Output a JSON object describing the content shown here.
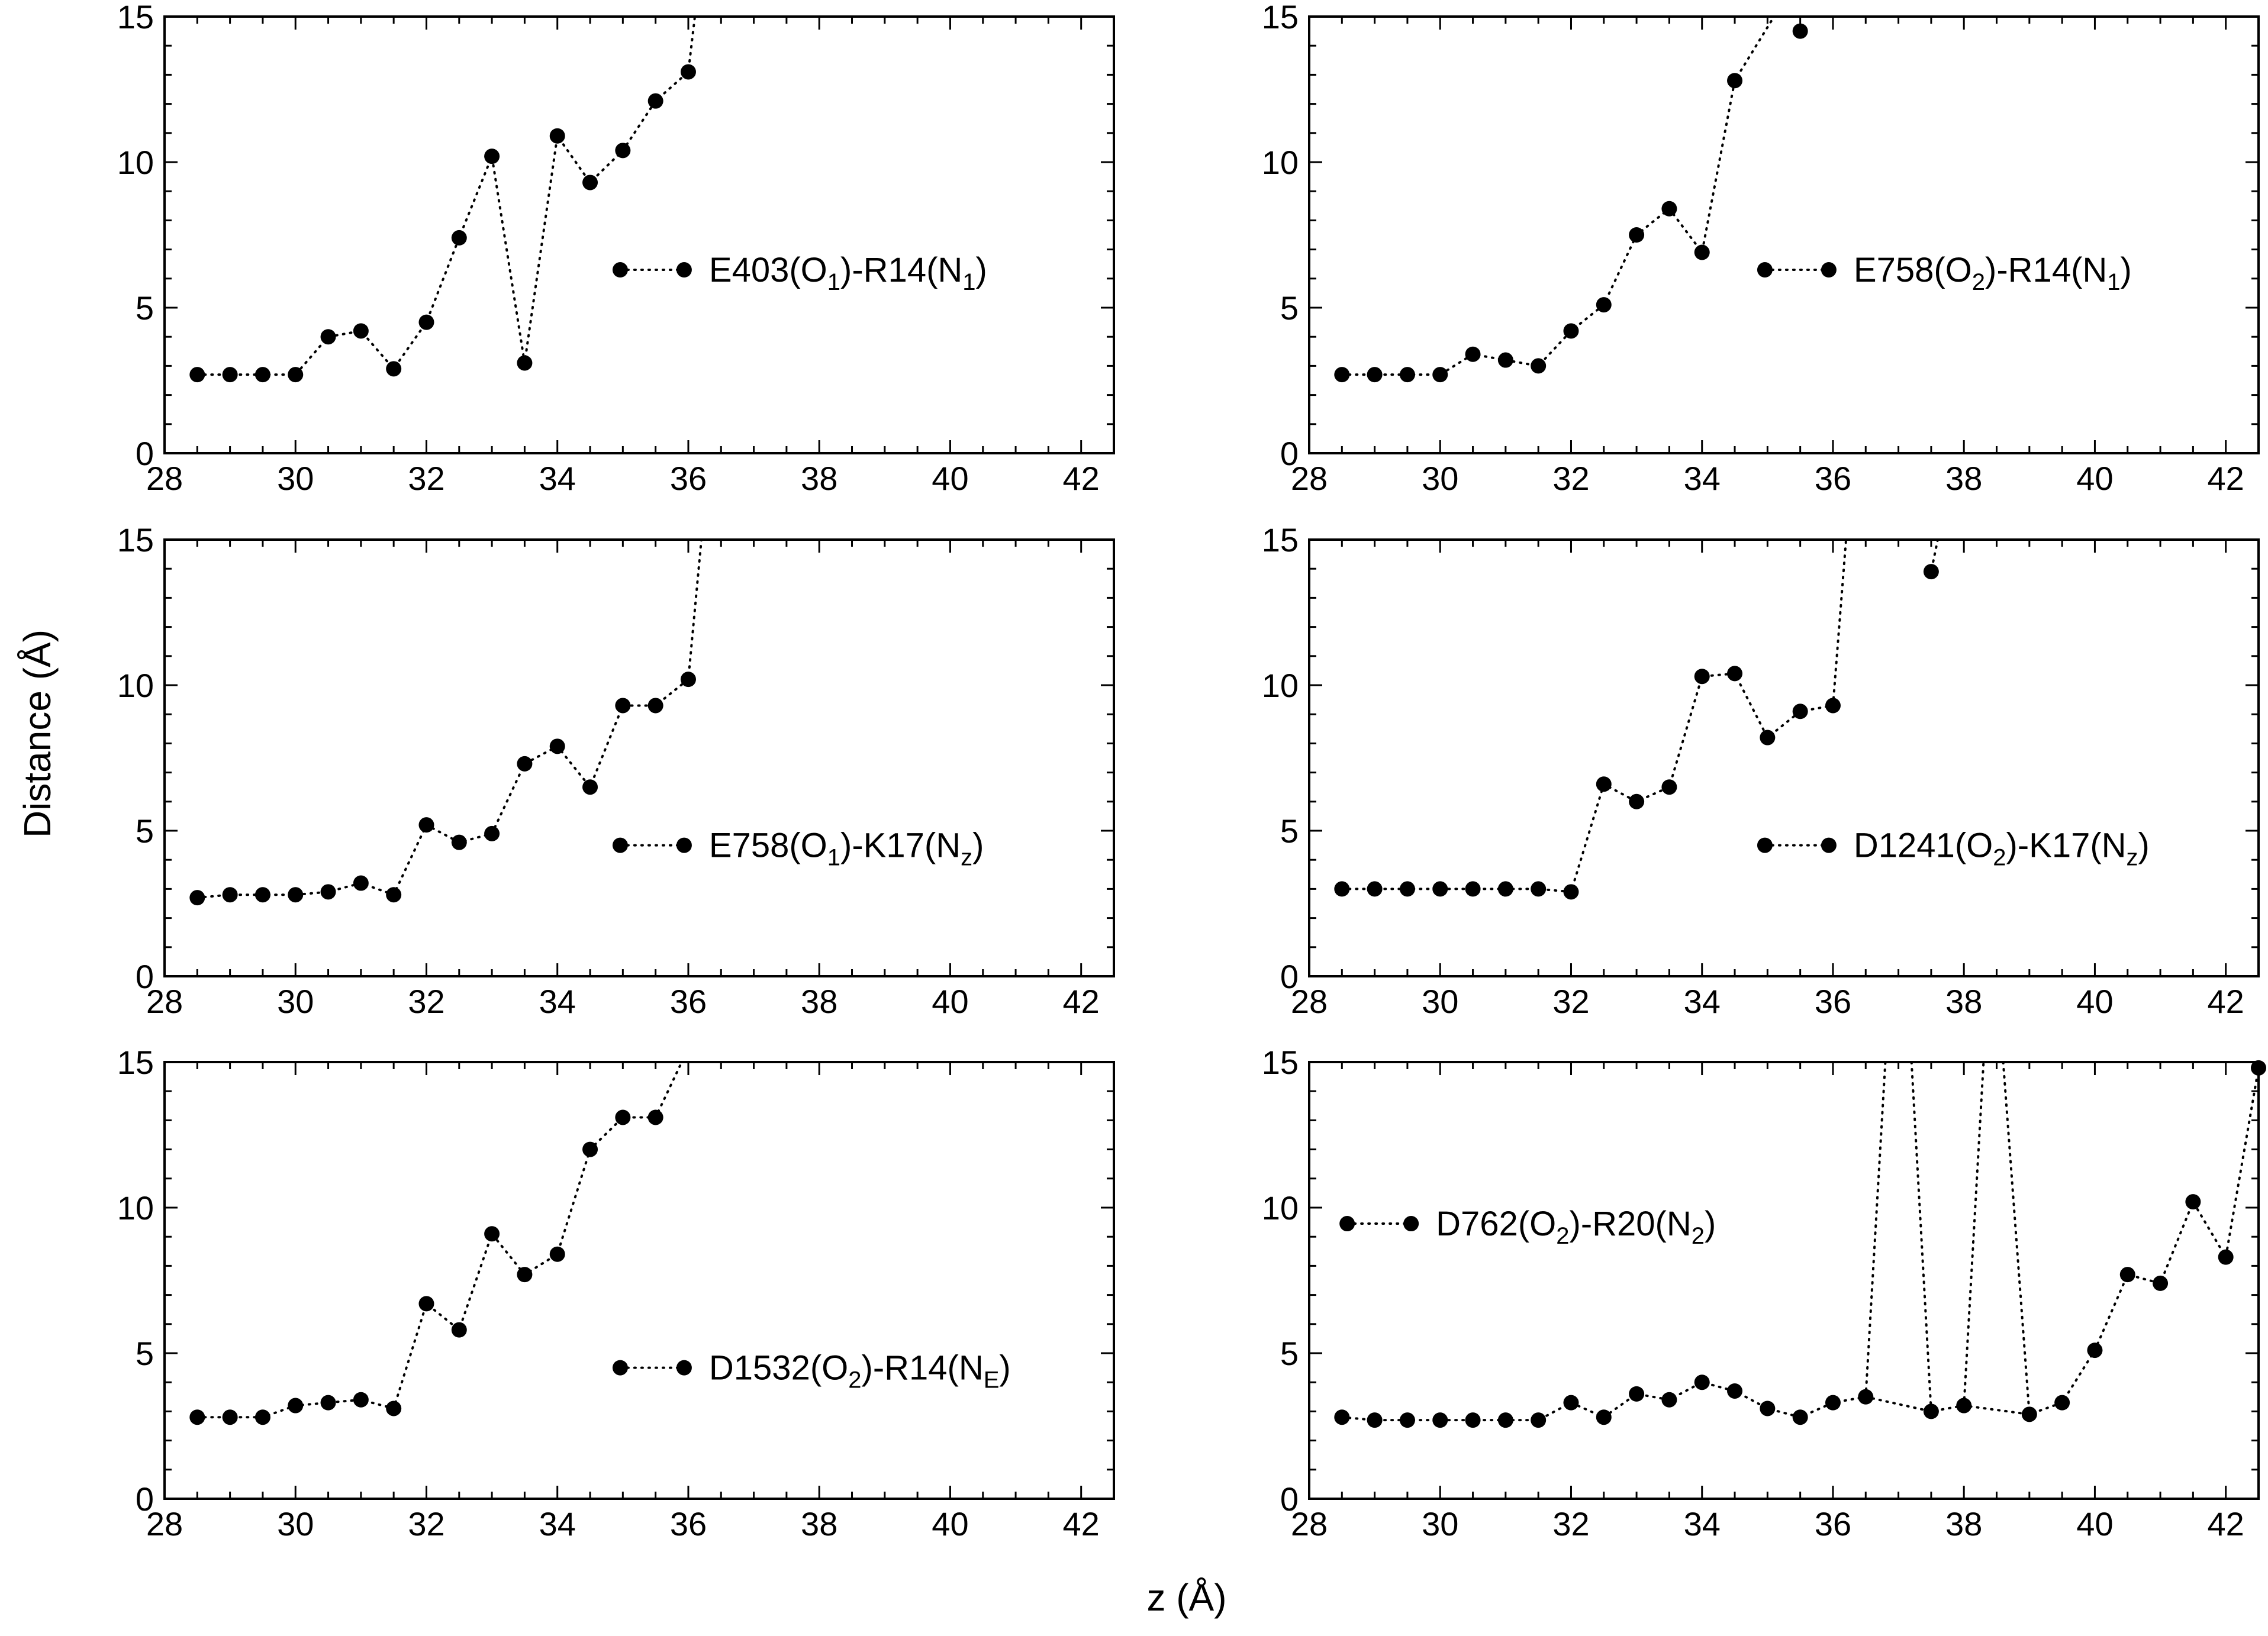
{
  "figure": {
    "xlabel": "z (Å)",
    "ylabel": "Distance  (Å)"
  },
  "chart_data": [
    {
      "type": "scatter",
      "panel": "top-left",
      "legend": {
        "parts": [
          "E403(O",
          "1",
          ")-R14(N",
          "1",
          ")"
        ],
        "placement": "right-middle"
      },
      "xlim": [
        28,
        42.5
      ],
      "ylim": [
        0,
        15
      ],
      "x_ticks": [
        "28",
        "30",
        "32",
        "34",
        "36",
        "38",
        "40",
        "42"
      ],
      "y_ticks": [
        "0",
        "5",
        "10",
        "15"
      ],
      "x": [
        28.5,
        29,
        29.5,
        30,
        30.5,
        31,
        31.5,
        32,
        32.5,
        33,
        33.5,
        34,
        34.5,
        35,
        35.5,
        36
      ],
      "y": [
        2.7,
        2.7,
        2.7,
        2.7,
        4.0,
        4.2,
        2.9,
        4.5,
        7.4,
        10.2,
        3.1,
        10.9,
        9.3,
        10.4,
        12.1,
        13.1
      ],
      "tail_to": [
        36.1,
        15
      ]
    },
    {
      "type": "scatter",
      "panel": "top-right",
      "legend": {
        "parts": [
          "E758(O",
          "2",
          ")-R14(N",
          "1",
          ")"
        ],
        "placement": "right-middle"
      },
      "xlim": [
        28,
        42.5
      ],
      "ylim": [
        0,
        15
      ],
      "x_ticks": [
        "28",
        "30",
        "32",
        "34",
        "36",
        "38",
        "40",
        "42"
      ],
      "y_ticks": [
        "0",
        "5",
        "10",
        "15"
      ],
      "x": [
        28.5,
        29,
        29.5,
        30,
        30.5,
        31,
        31.5,
        32,
        32.5,
        33,
        33.5,
        34,
        34.5,
        35.5
      ],
      "y": [
        2.7,
        2.7,
        2.7,
        2.7,
        3.4,
        3.2,
        3.0,
        4.2,
        5.1,
        7.5,
        8.4,
        6.9,
        12.8,
        14.5
      ],
      "break_before_last": true,
      "tail_to": [
        35.1,
        15
      ]
    },
    {
      "type": "scatter",
      "panel": "middle-left",
      "legend": {
        "parts": [
          "E758(O",
          "1",
          ")-K17(N",
          "z",
          ")"
        ],
        "placement": "right-lower"
      },
      "xlim": [
        28,
        42.5
      ],
      "ylim": [
        0,
        15
      ],
      "x_ticks": [
        "28",
        "30",
        "32",
        "34",
        "36",
        "38",
        "40",
        "42"
      ],
      "y_ticks": [
        "0",
        "5",
        "10",
        "15"
      ],
      "x": [
        28.5,
        29,
        29.5,
        30,
        30.5,
        31,
        31.5,
        32,
        32.5,
        33,
        33.5,
        34,
        34.5,
        35,
        35.5,
        36
      ],
      "y": [
        2.7,
        2.8,
        2.8,
        2.8,
        2.9,
        3.2,
        2.8,
        5.2,
        4.6,
        4.9,
        7.3,
        7.9,
        6.5,
        9.3,
        9.3,
        10.2
      ],
      "tail_to": [
        36.2,
        15
      ]
    },
    {
      "type": "scatter",
      "panel": "middle-right",
      "legend": {
        "parts": [
          "D1241(O",
          "2",
          ")-K17(N",
          "z",
          ")"
        ],
        "placement": "right-lower"
      },
      "xlim": [
        28,
        42.5
      ],
      "ylim": [
        0,
        15
      ],
      "x_ticks": [
        "28",
        "30",
        "32",
        "34",
        "36",
        "38",
        "40",
        "42"
      ],
      "y_ticks": [
        "0",
        "5",
        "10",
        "15"
      ],
      "x": [
        28.5,
        29,
        29.5,
        30,
        30.5,
        31,
        31.5,
        32,
        32.5,
        33,
        33.5,
        34,
        34.5,
        35,
        35.5,
        36,
        37.5
      ],
      "y": [
        3.0,
        3.0,
        3.0,
        3.0,
        3.0,
        3.0,
        3.0,
        2.9,
        6.6,
        6.0,
        6.5,
        10.3,
        10.4,
        8.2,
        9.1,
        9.3,
        13.9
      ],
      "break_before_last": true,
      "tail_to": [
        36.2,
        15
      ],
      "lead_in_last": [
        37.6,
        15
      ]
    },
    {
      "type": "scatter",
      "panel": "bottom-left",
      "legend": {
        "parts": [
          "D1532(O",
          "2",
          ")-R14(N",
          "E",
          ")"
        ],
        "placement": "right-lower"
      },
      "xlim": [
        28,
        42.5
      ],
      "ylim": [
        0,
        15
      ],
      "x_ticks": [
        "28",
        "30",
        "32",
        "34",
        "36",
        "38",
        "40",
        "42"
      ],
      "y_ticks": [
        "0",
        "5",
        "10",
        "15"
      ],
      "x": [
        28.5,
        29,
        29.5,
        30,
        30.5,
        31,
        31.5,
        32,
        32.5,
        33,
        33.5,
        34,
        34.5,
        35,
        35.5
      ],
      "y": [
        2.8,
        2.8,
        2.8,
        3.2,
        3.3,
        3.4,
        3.1,
        6.7,
        5.8,
        9.1,
        7.7,
        8.4,
        12.0,
        13.1,
        13.1
      ],
      "tail_to": [
        35.9,
        15
      ]
    },
    {
      "type": "scatter",
      "panel": "bottom-right",
      "legend": {
        "parts": [
          "D762(O",
          "2",
          ")-R20(N",
          "2",
          ")"
        ],
        "placement": "left-upper"
      },
      "xlim": [
        28,
        42.5
      ],
      "ylim": [
        0,
        15
      ],
      "x_ticks": [
        "28",
        "30",
        "32",
        "34",
        "36",
        "38",
        "40",
        "42"
      ],
      "y_ticks": [
        "0",
        "5",
        "10",
        "15"
      ],
      "x": [
        28.5,
        29,
        29.5,
        30,
        30.5,
        31,
        31.5,
        32,
        32.5,
        33,
        33.5,
        34,
        34.5,
        35,
        35.5,
        36,
        36.5,
        37.5,
        38,
        39,
        39.5,
        40,
        40.5,
        41,
        41.5,
        42,
        42.5
      ],
      "y": [
        2.8,
        2.7,
        2.7,
        2.7,
        2.7,
        2.7,
        2.7,
        3.3,
        2.8,
        3.6,
        3.4,
        4.0,
        3.7,
        3.1,
        2.8,
        3.3,
        3.5,
        3.0,
        3.2,
        2.9,
        3.3,
        5.1,
        7.7,
        7.4,
        10.2,
        8.3,
        14.8
      ],
      "excursions": [
        [
          [
            36.5,
            3.5
          ],
          [
            36.8,
            15
          ]
        ],
        [
          [
            37.2,
            15
          ],
          [
            37.5,
            3.0
          ]
        ],
        [
          [
            38.0,
            3.2
          ],
          [
            38.3,
            15
          ]
        ],
        [
          [
            38.6,
            15
          ],
          [
            39.0,
            2.9
          ]
        ]
      ]
    }
  ]
}
